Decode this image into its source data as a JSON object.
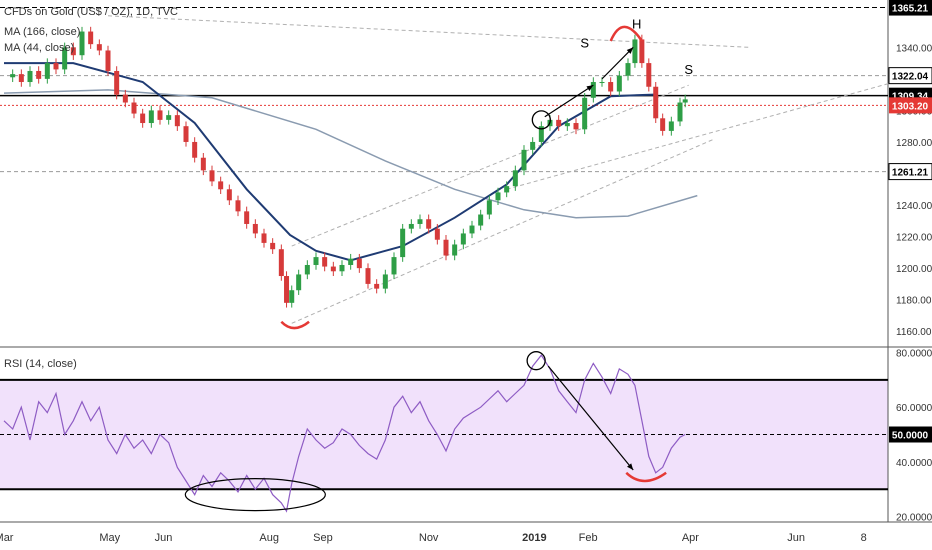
{
  "chart_data": {
    "type": "candlestick",
    "title": "CFDs on Gold (US$ / OZ), 1D, TVC",
    "price_axis": {
      "ylim": [
        1150,
        1370
      ],
      "ticks": [
        "1160.00",
        "1180.00",
        "1200.00",
        "1220.00",
        "1240.00",
        "1260.00",
        "1280.00",
        "1300.00",
        "1320.00",
        "1340.00"
      ],
      "tick_values": [
        1160,
        1180,
        1200,
        1220,
        1240,
        1260,
        1280,
        1300,
        1320,
        1340
      ]
    },
    "rsi_axis": {
      "ylim": [
        18,
        82
      ],
      "ticks": [
        "20.0000",
        "40.0000",
        "60.0000",
        "80.0000"
      ],
      "tick_values": [
        20,
        40,
        60,
        80
      ]
    },
    "x_axis": {
      "months": [
        "Mar",
        "May",
        "Jun",
        "Aug",
        "Sep",
        "Nov",
        "2019",
        "Feb",
        "Apr",
        "Jun",
        "8"
      ],
      "month_offsets_days": [
        0,
        61,
        92,
        153,
        184,
        245,
        306,
        337,
        396,
        457,
        496
      ],
      "range_days": [
        0,
        510
      ]
    },
    "indicators": [
      {
        "name": "MA (166, close)",
        "color": "#8a9bb0",
        "approx_path": [
          [
            0,
            1311
          ],
          [
            60,
            1313
          ],
          [
            120,
            1308
          ],
          [
            180,
            1288
          ],
          [
            220,
            1268
          ],
          [
            260,
            1250
          ],
          [
            300,
            1237
          ],
          [
            330,
            1232
          ],
          [
            360,
            1233
          ],
          [
            400,
            1246
          ]
        ]
      },
      {
        "name": "MA (44, close)",
        "color": "#1f3b73",
        "approx_path": [
          [
            0,
            1330
          ],
          [
            40,
            1330
          ],
          [
            80,
            1318
          ],
          [
            110,
            1292
          ],
          [
            140,
            1250
          ],
          [
            165,
            1221
          ],
          [
            180,
            1211
          ],
          [
            200,
            1205
          ],
          [
            230,
            1214
          ],
          [
            260,
            1232
          ],
          [
            290,
            1253
          ],
          [
            320,
            1290
          ],
          [
            350,
            1309
          ],
          [
            375,
            1310
          ]
        ]
      }
    ],
    "rsi_label": "RSI (14, close)",
    "rsi_levels": [
      70,
      50,
      30
    ],
    "price_labels": [
      {
        "text": "1365.21",
        "value": 1365.21,
        "style": "dashed",
        "color": "#000000"
      },
      {
        "text": "1322.04",
        "value": 1322.04,
        "style": "dashed-gray",
        "color": "#333333"
      },
      {
        "text": "1309.34",
        "value": 1309.34,
        "style": "solid",
        "color": "#000000"
      },
      {
        "text": "1303.20",
        "value": 1303.2,
        "style": "dotted",
        "color": "#e53935"
      },
      {
        "text": "1261.21",
        "value": 1261.21,
        "style": "dashed-gray",
        "color": "#333333"
      }
    ],
    "rsi_value_label": "50.0000",
    "annotations": [
      "S",
      "H",
      "S"
    ],
    "close_path": [
      [
        0,
        1321
      ],
      [
        5,
        1323
      ],
      [
        10,
        1318
      ],
      [
        15,
        1325
      ],
      [
        20,
        1320
      ],
      [
        25,
        1330
      ],
      [
        30,
        1326
      ],
      [
        35,
        1340
      ],
      [
        40,
        1335
      ],
      [
        45,
        1350
      ],
      [
        50,
        1342
      ],
      [
        55,
        1338
      ],
      [
        60,
        1325
      ],
      [
        65,
        1310
      ],
      [
        70,
        1305
      ],
      [
        75,
        1298
      ],
      [
        80,
        1292
      ],
      [
        85,
        1300
      ],
      [
        90,
        1294
      ],
      [
        95,
        1297
      ],
      [
        100,
        1290
      ],
      [
        105,
        1280
      ],
      [
        110,
        1270
      ],
      [
        115,
        1262
      ],
      [
        120,
        1255
      ],
      [
        125,
        1250
      ],
      [
        130,
        1243
      ],
      [
        135,
        1236
      ],
      [
        140,
        1228
      ],
      [
        145,
        1222
      ],
      [
        150,
        1216
      ],
      [
        155,
        1212
      ],
      [
        160,
        1195
      ],
      [
        163,
        1178
      ],
      [
        166,
        1186
      ],
      [
        170,
        1196
      ],
      [
        175,
        1202
      ],
      [
        180,
        1207
      ],
      [
        185,
        1201
      ],
      [
        190,
        1198
      ],
      [
        195,
        1202
      ],
      [
        200,
        1206
      ],
      [
        205,
        1200
      ],
      [
        210,
        1190
      ],
      [
        215,
        1187
      ],
      [
        220,
        1196
      ],
      [
        225,
        1207
      ],
      [
        230,
        1225
      ],
      [
        235,
        1228
      ],
      [
        240,
        1231
      ],
      [
        245,
        1225
      ],
      [
        250,
        1218
      ],
      [
        255,
        1208
      ],
      [
        260,
        1215
      ],
      [
        265,
        1222
      ],
      [
        270,
        1227
      ],
      [
        275,
        1234
      ],
      [
        280,
        1243
      ],
      [
        285,
        1248
      ],
      [
        290,
        1252
      ],
      [
        295,
        1262
      ],
      [
        300,
        1275
      ],
      [
        305,
        1280
      ],
      [
        310,
        1290
      ],
      [
        315,
        1294
      ],
      [
        320,
        1290
      ],
      [
        325,
        1292
      ],
      [
        330,
        1288
      ],
      [
        335,
        1308
      ],
      [
        340,
        1318
      ],
      [
        345,
        1318
      ],
      [
        350,
        1312
      ],
      [
        355,
        1322
      ],
      [
        360,
        1330
      ],
      [
        364,
        1345
      ],
      [
        368,
        1330
      ],
      [
        372,
        1315
      ],
      [
        376,
        1295
      ],
      [
        380,
        1287
      ],
      [
        385,
        1293
      ],
      [
        390,
        1305
      ],
      [
        393,
        1307
      ]
    ],
    "rsi_path": [
      [
        0,
        55
      ],
      [
        5,
        52
      ],
      [
        10,
        60
      ],
      [
        15,
        48
      ],
      [
        20,
        62
      ],
      [
        25,
        58
      ],
      [
        30,
        65
      ],
      [
        35,
        50
      ],
      [
        40,
        55
      ],
      [
        45,
        62
      ],
      [
        50,
        55
      ],
      [
        55,
        60
      ],
      [
        60,
        48
      ],
      [
        65,
        43
      ],
      [
        70,
        50
      ],
      [
        75,
        45
      ],
      [
        80,
        48
      ],
      [
        85,
        43
      ],
      [
        90,
        50
      ],
      [
        95,
        47
      ],
      [
        100,
        38
      ],
      [
        105,
        33
      ],
      [
        110,
        28
      ],
      [
        115,
        35
      ],
      [
        120,
        31
      ],
      [
        125,
        36
      ],
      [
        130,
        33
      ],
      [
        135,
        29
      ],
      [
        140,
        35
      ],
      [
        145,
        30
      ],
      [
        150,
        34
      ],
      [
        155,
        28
      ],
      [
        160,
        25
      ],
      [
        163,
        22
      ],
      [
        166,
        32
      ],
      [
        170,
        42
      ],
      [
        175,
        52
      ],
      [
        180,
        48
      ],
      [
        185,
        45
      ],
      [
        190,
        47
      ],
      [
        195,
        52
      ],
      [
        200,
        50
      ],
      [
        205,
        46
      ],
      [
        210,
        43
      ],
      [
        215,
        41
      ],
      [
        220,
        48
      ],
      [
        225,
        60
      ],
      [
        230,
        64
      ],
      [
        235,
        58
      ],
      [
        240,
        62
      ],
      [
        245,
        55
      ],
      [
        250,
        50
      ],
      [
        255,
        44
      ],
      [
        260,
        52
      ],
      [
        265,
        56
      ],
      [
        270,
        58
      ],
      [
        275,
        60
      ],
      [
        280,
        63
      ],
      [
        285,
        66
      ],
      [
        290,
        62
      ],
      [
        295,
        65
      ],
      [
        300,
        68
      ],
      [
        305,
        75
      ],
      [
        310,
        79
      ],
      [
        315,
        74
      ],
      [
        320,
        66
      ],
      [
        325,
        62
      ],
      [
        330,
        58
      ],
      [
        335,
        70
      ],
      [
        340,
        76
      ],
      [
        345,
        71
      ],
      [
        350,
        65
      ],
      [
        355,
        74
      ],
      [
        360,
        72
      ],
      [
        364,
        68
      ],
      [
        368,
        55
      ],
      [
        372,
        42
      ],
      [
        376,
        36
      ],
      [
        380,
        38
      ],
      [
        385,
        45
      ],
      [
        390,
        49
      ],
      [
        393,
        50
      ]
    ]
  }
}
